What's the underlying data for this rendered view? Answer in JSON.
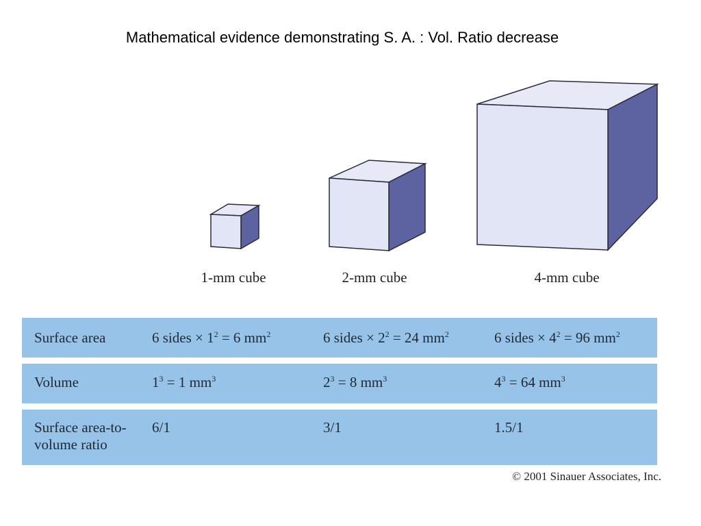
{
  "title": "Mathematical evidence demonstrating S. A. : Vol. Ratio decrease",
  "cubes": [
    {
      "label": "1-mm cube"
    },
    {
      "label": "2-mm cube"
    },
    {
      "label": "4-mm cube"
    }
  ],
  "colors": {
    "cube_front": "#e2e5f6",
    "cube_top": "#e7e9f7",
    "cube_side": "#5d62a0",
    "cube_edge": "#2a2a3a",
    "table_band": "#98c3e8"
  },
  "table": {
    "rows": [
      {
        "label": "Surface area",
        "cells": [
          {
            "pre": "6 sides × 1",
            "sup1": "2",
            "mid": " = 6 mm",
            "sup2": "2"
          },
          {
            "pre": "6 sides × 2",
            "sup1": "2",
            "mid": " = 24 mm",
            "sup2": "2"
          },
          {
            "pre": "6 sides × 4",
            "sup1": "2",
            "mid": " = 96 mm",
            "sup2": "2"
          }
        ]
      },
      {
        "label": "Volume",
        "cells": [
          {
            "pre": "1",
            "sup1": "3",
            "mid": " = 1 mm",
            "sup2": "3"
          },
          {
            "pre": "2",
            "sup1": "3",
            "mid": " = 8 mm",
            "sup2": "3"
          },
          {
            "pre": "4",
            "sup1": "3",
            "mid": " = 64 mm",
            "sup2": "3"
          }
        ]
      },
      {
        "label": "Surface area-to-volume ratio",
        "cells": [
          {
            "text": "6/1"
          },
          {
            "text": "3/1"
          },
          {
            "text": "1.5/1"
          }
        ]
      }
    ]
  },
  "copyright": "© 2001 Sinauer Associates, Inc."
}
